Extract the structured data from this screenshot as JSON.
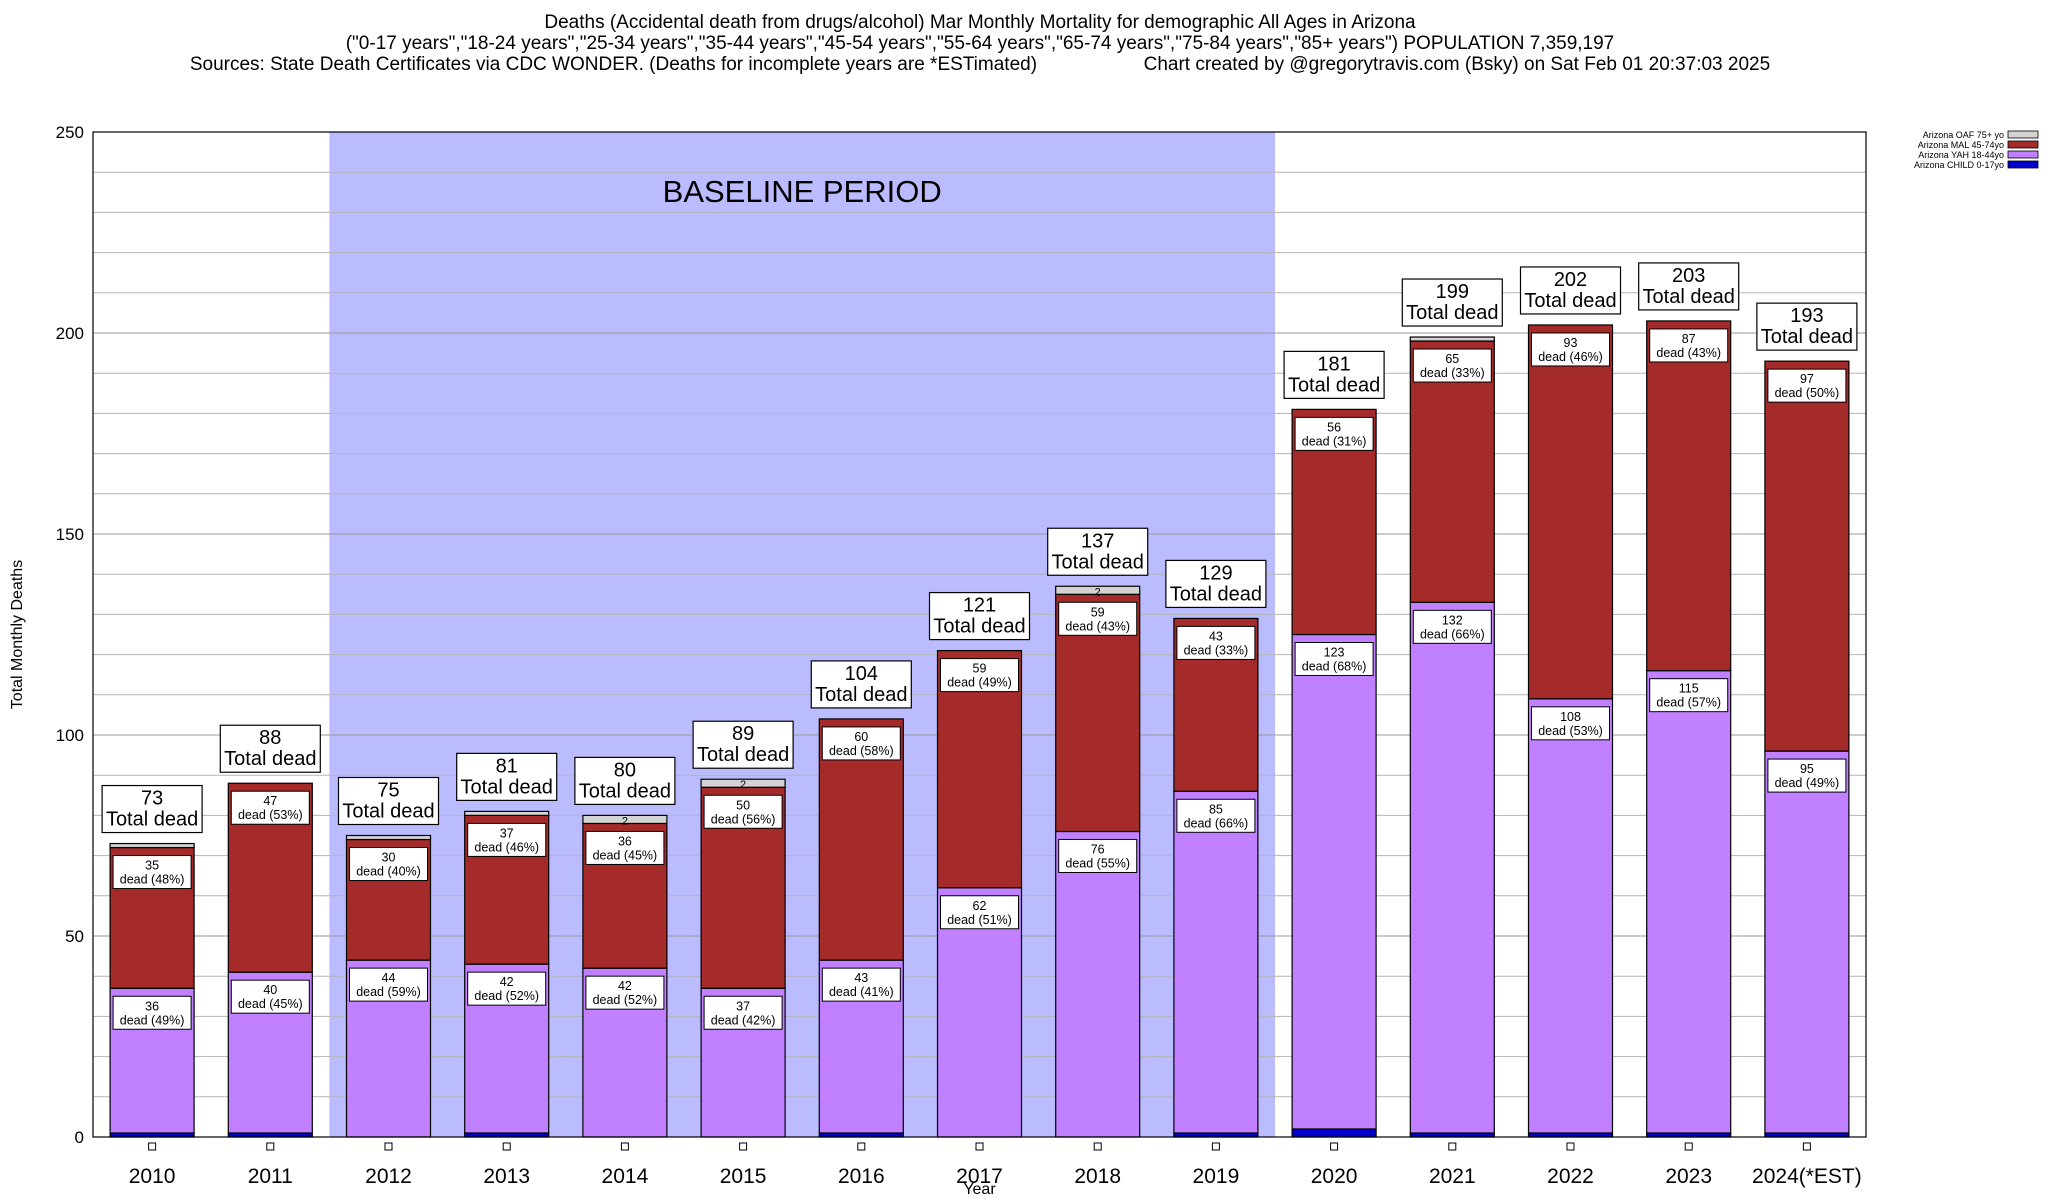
{
  "chart_data": {
    "type": "bar",
    "stacked": true,
    "title": "Deaths (Accidental death from drugs/alcohol) Mar Monthly Mortality for demographic All Ages in Arizona",
    "subtitle": "(\"0-17 years\",\"18-24 years\",\"25-34 years\",\"35-44 years\",\"45-54 years\",\"55-64 years\",\"65-74 years\",\"75-84 years\",\"85+ years\") POPULATION 7,359,197",
    "sources": "Sources: State Death Certificates via CDC WONDER. (Deaths for incomplete years are *ESTimated)",
    "credit": "Chart created by @gregorytravis.com (Bsky) on Sat Feb 01 20:37:03 2025",
    "xlabel": "Year",
    "ylabel": "Total Monthly Deaths",
    "ylim": [
      0,
      250
    ],
    "ytick_step": 50,
    "minor_step": 10,
    "grid": true,
    "baseline_label": "BASELINE PERIOD",
    "baseline_range": [
      "2012",
      "2019"
    ],
    "total_suffix": "Total dead",
    "categories": [
      "2010",
      "2011",
      "2012",
      "2013",
      "2014",
      "2015",
      "2016",
      "2017",
      "2018",
      "2019",
      "2020",
      "2021",
      "2022",
      "2023",
      "2024(*EST)"
    ],
    "totals": [
      73,
      88,
      75,
      81,
      80,
      89,
      104,
      121,
      137,
      129,
      181,
      199,
      202,
      203,
      193
    ],
    "series": [
      {
        "name": "Arizona CHILD 0-17yo",
        "color": "#0000cc",
        "values": [
          1,
          1,
          0,
          1,
          0,
          0,
          1,
          0,
          0,
          1,
          2,
          1,
          1,
          1,
          1
        ]
      },
      {
        "name": "Arizona YAH 18-44yo",
        "color": "#c080ff",
        "values": [
          36,
          40,
          44,
          42,
          42,
          37,
          43,
          62,
          76,
          85,
          123,
          132,
          108,
          115,
          95
        ],
        "labels": [
          "36\ndead (49%)",
          "40\ndead (45%)",
          "44\ndead (59%)",
          "42\ndead (52%)",
          "42\ndead (52%)",
          "37\ndead (42%)",
          "43\ndead (41%)",
          "62\ndead (51%)",
          "76\ndead (55%)",
          "85\ndead (66%)",
          "123\ndead (68%)",
          "132\ndead (66%)",
          "108\ndead (53%)",
          "115\ndead (57%)",
          "95\ndead (49%)"
        ]
      },
      {
        "name": "Arizona MAL 45-74yo",
        "color": "#a52a2a",
        "values": [
          35,
          47,
          30,
          37,
          36,
          50,
          60,
          59,
          59,
          43,
          56,
          65,
          93,
          87,
          97
        ],
        "labels": [
          "35\ndead (48%)",
          "47\ndead (53%)",
          "30\ndead (40%)",
          "37\ndead (46%)",
          "36\ndead (45%)",
          "50\ndead (56%)",
          "60\ndead (58%)",
          "59\ndead (49%)",
          "59\ndead (43%)",
          "43\ndead (33%)",
          "56\ndead (31%)",
          "65\ndead (33%)",
          "93\ndead (46%)",
          "87\ndead (43%)",
          "97\ndead (50%)"
        ]
      },
      {
        "name": "Arizona OAF 75+ yo",
        "color": "#d3d3d3",
        "values": [
          1,
          0,
          1,
          1,
          2,
          2,
          0,
          0,
          2,
          0,
          0,
          1,
          0,
          0,
          0
        ],
        "labels": [
          "",
          "",
          "",
          "",
          "2",
          "2",
          "",
          "",
          "2",
          "",
          "",
          "",
          "",
          "",
          ""
        ]
      }
    ],
    "legend_position": "top-right"
  }
}
